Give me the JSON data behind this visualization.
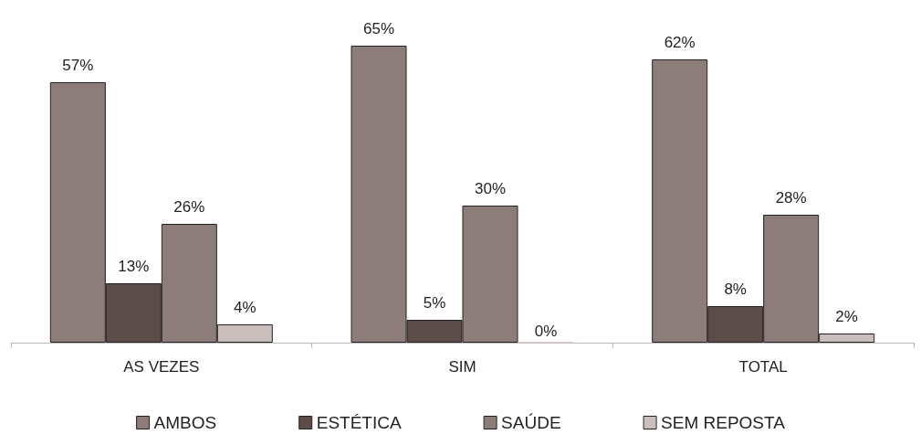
{
  "chart_data": {
    "type": "bar",
    "categories": [
      "AS VEZES",
      "SIM",
      "TOTAL"
    ],
    "series": [
      {
        "name": "AMBOS",
        "color": "#8c7c7a",
        "values": [
          57,
          65,
          62
        ],
        "value_labels": [
          "57%",
          "65%",
          "62%"
        ]
      },
      {
        "name": "ESTÉTICA",
        "color": "#5c4c4a",
        "values": [
          13,
          5,
          8
        ],
        "value_labels": [
          "13%",
          "5%",
          "8%"
        ]
      },
      {
        "name": "SAÚDE",
        "color": "#8c7c7a",
        "values": [
          26,
          30,
          28
        ],
        "value_labels": [
          "26%",
          "30%",
          "28%"
        ]
      },
      {
        "name": "SEM REPOSTA",
        "color": "#cbbfbd",
        "values": [
          4,
          0,
          2
        ],
        "value_labels": [
          "4%",
          "0%",
          "2%"
        ]
      }
    ],
    "legend": "bottom"
  }
}
